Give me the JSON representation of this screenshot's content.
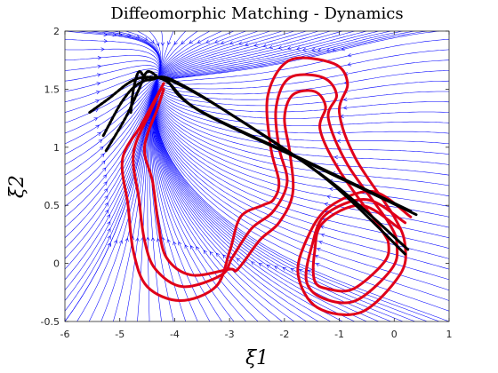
{
  "chart_data": {
    "type": "line",
    "title": "Diffeomorphic Matching - Dynamics",
    "xlabel": "ξ1",
    "ylabel": "ξ2",
    "xlim": [
      -6,
      1
    ],
    "ylim": [
      -0.5,
      2
    ],
    "xticks": [
      "-6",
      "-5",
      "-4",
      "-3",
      "-2",
      "-1",
      "0",
      "1"
    ],
    "yticks": [
      "-0.5",
      "0",
      "0.5",
      "1",
      "1.5",
      "2"
    ],
    "grid": false,
    "colors": {
      "streamlines": "#0000ff",
      "trajectories": "#e0001a",
      "demonstrations": "#000000"
    },
    "attractor": [
      -4.3,
      1.6
    ],
    "series": [
      {
        "kind": "red",
        "points": [
          [
            0.3,
            0.4
          ],
          [
            -0.4,
            0.62
          ],
          [
            -1.2,
            0.48
          ],
          [
            -1.6,
            0.2
          ],
          [
            -1.75,
            -0.1
          ],
          [
            -1.4,
            -0.38
          ],
          [
            -0.6,
            -0.42
          ],
          [
            0.1,
            -0.1
          ],
          [
            0.2,
            0.15
          ],
          [
            0.0,
            0.4
          ],
          [
            -0.7,
            0.9
          ],
          [
            -1.0,
            1.3
          ],
          [
            -0.85,
            1.55
          ],
          [
            -1.1,
            1.72
          ],
          [
            -1.9,
            1.75
          ],
          [
            -2.3,
            1.45
          ],
          [
            -2.25,
            1.0
          ],
          [
            -2.1,
            0.7
          ],
          [
            -2.2,
            0.55
          ],
          [
            -2.4,
            0.5
          ],
          [
            -2.8,
            0.4
          ],
          [
            -3.0,
            0.1
          ],
          [
            -3.25,
            -0.2
          ],
          [
            -3.9,
            -0.32
          ],
          [
            -4.5,
            -0.2
          ],
          [
            -4.75,
            0.1
          ],
          [
            -4.85,
            0.5
          ],
          [
            -4.95,
            0.9
          ],
          [
            -4.6,
            1.2
          ],
          [
            -4.2,
            1.55
          ]
        ]
      },
      {
        "kind": "red",
        "points": [
          [
            0.2,
            0.35
          ],
          [
            -0.5,
            0.55
          ],
          [
            -1.25,
            0.42
          ],
          [
            -1.5,
            0.15
          ],
          [
            -1.6,
            -0.15
          ],
          [
            -1.3,
            -0.3
          ],
          [
            -0.7,
            -0.32
          ],
          [
            -0.05,
            -0.05
          ],
          [
            0.05,
            0.15
          ],
          [
            -0.1,
            0.35
          ],
          [
            -0.85,
            0.85
          ],
          [
            -1.2,
            1.25
          ],
          [
            -1.05,
            1.45
          ],
          [
            -1.3,
            1.6
          ],
          [
            -1.9,
            1.6
          ],
          [
            -2.15,
            1.35
          ],
          [
            -2.1,
            1.0
          ],
          [
            -1.95,
            0.7
          ],
          [
            -2.2,
            0.45
          ],
          [
            -2.6,
            0.3
          ],
          [
            -2.95,
            0.05
          ],
          [
            -3.15,
            -0.1
          ],
          [
            -3.85,
            -0.2
          ],
          [
            -4.35,
            -0.05
          ],
          [
            -4.55,
            0.2
          ],
          [
            -4.65,
            0.55
          ],
          [
            -4.75,
            0.95
          ],
          [
            -4.45,
            1.3
          ],
          [
            -4.2,
            1.55
          ]
        ]
      },
      {
        "kind": "red",
        "points": [
          [
            0.1,
            0.3
          ],
          [
            -0.6,
            0.5
          ],
          [
            -1.3,
            0.35
          ],
          [
            -1.45,
            0.1
          ],
          [
            -1.45,
            -0.15
          ],
          [
            -1.2,
            -0.22
          ],
          [
            -0.75,
            -0.22
          ],
          [
            -0.2,
            0.0
          ],
          [
            -0.1,
            0.15
          ],
          [
            -0.25,
            0.3
          ],
          [
            -1.0,
            0.8
          ],
          [
            -1.35,
            1.15
          ],
          [
            -1.25,
            1.35
          ],
          [
            -1.45,
            1.48
          ],
          [
            -1.85,
            1.45
          ],
          [
            -2.0,
            1.25
          ],
          [
            -1.9,
            0.95
          ],
          [
            -1.85,
            0.6
          ],
          [
            -2.1,
            0.35
          ],
          [
            -2.45,
            0.2
          ],
          [
            -2.85,
            -0.05
          ],
          [
            -3.0,
            -0.05
          ],
          [
            -3.7,
            -0.1
          ],
          [
            -4.15,
            0.05
          ],
          [
            -4.3,
            0.35
          ],
          [
            -4.4,
            0.7
          ],
          [
            -4.55,
            1.0
          ],
          [
            -4.3,
            1.35
          ],
          [
            -4.2,
            1.5
          ]
        ]
      },
      {
        "kind": "black",
        "points": [
          [
            0.4,
            0.42
          ],
          [
            -1.5,
            0.85
          ],
          [
            -3.5,
            1.3
          ],
          [
            -4.1,
            1.55
          ],
          [
            -4.3,
            1.6
          ]
        ]
      },
      {
        "kind": "black",
        "points": [
          [
            0.3,
            0.45
          ],
          [
            -1.6,
            0.88
          ],
          [
            -3.6,
            1.33
          ],
          [
            -4.15,
            1.58
          ],
          [
            -4.3,
            1.6
          ]
        ]
      },
      {
        "kind": "black",
        "points": [
          [
            0.2,
            0.08
          ],
          [
            -1.3,
            0.75
          ],
          [
            -3.2,
            1.35
          ],
          [
            -4.05,
            1.58
          ],
          [
            -4.3,
            1.6
          ]
        ]
      },
      {
        "kind": "black",
        "points": [
          [
            0.25,
            0.12
          ],
          [
            -1.2,
            0.72
          ],
          [
            -3.1,
            1.32
          ],
          [
            -4.0,
            1.56
          ],
          [
            -4.3,
            1.6
          ]
        ]
      },
      {
        "kind": "black",
        "points": [
          [
            -5.55,
            1.3
          ],
          [
            -5.2,
            1.42
          ],
          [
            -4.85,
            1.55
          ],
          [
            -4.6,
            1.6
          ],
          [
            -4.3,
            1.6
          ]
        ]
      },
      {
        "kind": "black",
        "points": [
          [
            -5.3,
            1.1
          ],
          [
            -4.95,
            1.4
          ],
          [
            -4.65,
            1.55
          ],
          [
            -4.3,
            1.6
          ]
        ]
      },
      {
        "kind": "black",
        "points": [
          [
            -5.25,
            0.97
          ],
          [
            -4.9,
            1.25
          ],
          [
            -4.65,
            1.5
          ],
          [
            -4.5,
            1.65
          ],
          [
            -4.3,
            1.6
          ]
        ]
      },
      {
        "kind": "black",
        "points": [
          [
            -4.8,
            1.3
          ],
          [
            -4.75,
            1.5
          ],
          [
            -4.65,
            1.65
          ],
          [
            -4.5,
            1.58
          ],
          [
            -4.3,
            1.6
          ]
        ]
      }
    ]
  }
}
